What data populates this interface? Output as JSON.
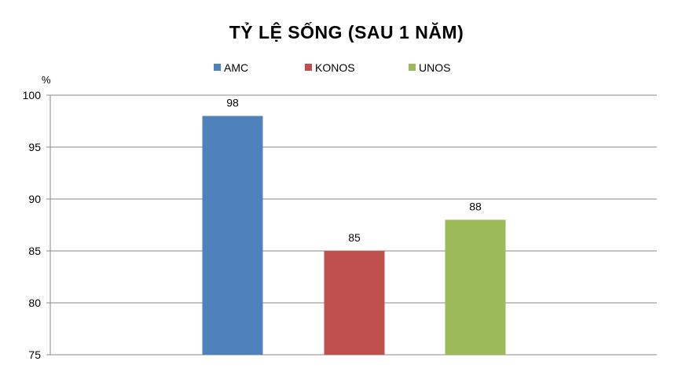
{
  "chart_data": {
    "type": "bar",
    "title": "TỶ LỆ SỐNG (SAU 1 NĂM)",
    "ylabel": "%",
    "xlabel": "",
    "ylim": [
      75,
      100
    ],
    "yticks": [
      75,
      80,
      85,
      90,
      95,
      100
    ],
    "grid": true,
    "legend_position": "top",
    "series": [
      {
        "name": "AMC",
        "value": 98,
        "color": "#4F81BD"
      },
      {
        "name": "KONOS",
        "value": 85,
        "color": "#C0504D"
      },
      {
        "name": "UNOS",
        "value": 88,
        "color": "#9BBB59"
      }
    ]
  }
}
